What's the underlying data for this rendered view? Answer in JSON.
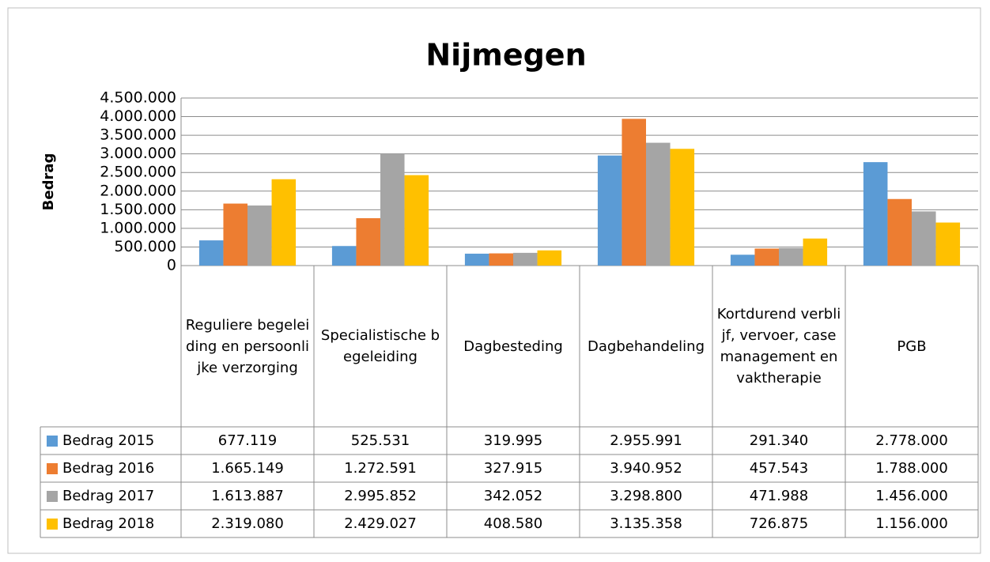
{
  "chart_data": {
    "type": "bar",
    "title": "Nijmegen",
    "y_label": "Bedrag",
    "categories": [
      "Reguliere begeleiding en persoonlijke verzorging",
      "Specialistische begeleiding",
      "Dagbesteding",
      "Dagbehandeling",
      "Kortdurend verblijf, vervoer, casemanagement en vaktherapie",
      "PGB"
    ],
    "series": [
      {
        "name": "Bedrag 2015",
        "color": "#5b9bd5",
        "values": [
          677119,
          525531,
          319995,
          2955991,
          291340,
          2778000
        ],
        "value_labels": [
          "677.119",
          "525.531",
          "319.995",
          "2.955.991",
          "291.340",
          "2.778.000"
        ]
      },
      {
        "name": "Bedrag 2016",
        "color": "#ed7d31",
        "values": [
          1665149,
          1272591,
          327915,
          3940952,
          457543,
          1788000
        ],
        "value_labels": [
          "1.665.149",
          "1.272.591",
          "327.915",
          "3.940.952",
          "457.543",
          "1.788.000"
        ]
      },
      {
        "name": "Bedrag 2017",
        "color": "#a5a5a5",
        "values": [
          1613887,
          2995852,
          342052,
          3298800,
          471988,
          1456000
        ],
        "value_labels": [
          "1.613.887",
          "2.995.852",
          "342.052",
          "3.298.800",
          "471.988",
          "1.456.000"
        ]
      },
      {
        "name": "Bedrag 2018",
        "color": "#ffc000",
        "values": [
          2319080,
          2429027,
          408580,
          3135358,
          726875,
          1156000
        ],
        "value_labels": [
          "2.319.080",
          "2.429.027",
          "408.580",
          "3.135.358",
          "726.875",
          "1.156.000"
        ]
      }
    ],
    "ylim": [
      0,
      4500000
    ],
    "yticks": [
      0,
      {
        "value": 500000,
        "label": "500.000"
      },
      {
        "value": 1000000,
        "label": "1.000.000"
      },
      {
        "value": 1500000,
        "label": "1.500.000"
      },
      {
        "value": 2000000,
        "label": "2.000.000"
      },
      {
        "value": 2500000,
        "label": "2.500.000"
      },
      {
        "value": 3000000,
        "label": "3.000.000"
      },
      {
        "value": 3500000,
        "label": "3.500.000"
      },
      {
        "value": 4000000,
        "label": "4.000.000"
      },
      {
        "value": 4500000,
        "label": "4.500.000"
      }
    ],
    "grid": true
  }
}
